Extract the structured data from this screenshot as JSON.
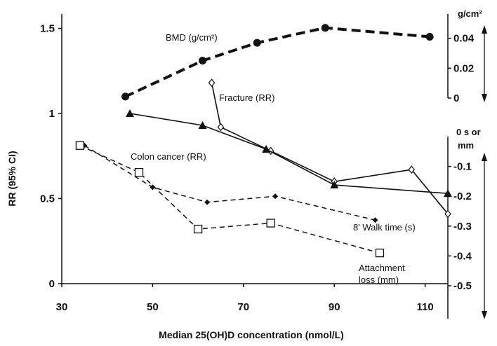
{
  "chart_data": {
    "type": "line",
    "xlabel": "Median 25(OH)D concentration (nmol/L)",
    "ylabel": "RR (95% CI)",
    "xlim": [
      30,
      115
    ],
    "ylim": [
      0,
      1.6
    ],
    "x_ticks": [
      "30",
      "50",
      "70",
      "90",
      "110"
    ],
    "y_ticks": [
      "0",
      "0.5",
      "1",
      "1.5"
    ],
    "grid": false,
    "right_axes": [
      {
        "id": "bmd",
        "unit_label": "g/cm²",
        "range": [
          0,
          0.045
        ],
        "ticks": [
          "0",
          "0.02",
          "0.04"
        ]
      },
      {
        "id": "walk",
        "unit_label_lines": [
          "0 s or",
          "mm"
        ],
        "range": [
          -0.5,
          0
        ],
        "ticks": [
          "-0.1",
          "-0.2",
          "-0.3",
          "-0.4",
          "-0.5"
        ]
      }
    ],
    "series": [
      {
        "key": "bmd",
        "label": "BMD (g/cm²)",
        "axis": "bmd",
        "marker": "circle",
        "line": "dashed-thick",
        "x": [
          44,
          61,
          73,
          88,
          111
        ],
        "y": [
          0.001,
          0.025,
          0.037,
          0.047,
          0.041
        ]
      },
      {
        "key": "fracture",
        "label": "Fracture (RR)",
        "axis": "rr",
        "marker": "open-diamond",
        "line": "solid",
        "x": [
          63,
          65,
          76,
          90,
          107,
          115
        ],
        "y": [
          1.18,
          0.92,
          0.78,
          0.6,
          0.67,
          0.41
        ]
      },
      {
        "key": "colon",
        "label": "Colon cancer (RR)",
        "axis": "rr",
        "marker": "triangle",
        "line": "solid",
        "x": [
          45,
          61,
          75,
          90,
          115
        ],
        "y": [
          1.0,
          0.93,
          0.79,
          0.58,
          0.53
        ]
      },
      {
        "key": "walk",
        "label": "8' Walk time (s)",
        "axis": "walk",
        "marker": "diamond",
        "line": "dashed",
        "x": [
          35,
          50,
          62,
          77,
          99
        ],
        "y": [
          -0.03,
          -0.17,
          -0.22,
          -0.2,
          -0.28
        ]
      },
      {
        "key": "attachment",
        "label_lines": [
          "Attachment",
          "loss (mm)"
        ],
        "axis": "walk",
        "marker": "open-square",
        "line": "dashed",
        "x": [
          34,
          47,
          60,
          76,
          100
        ],
        "y": [
          -0.03,
          -0.12,
          -0.31,
          -0.29,
          -0.39
        ]
      }
    ]
  }
}
